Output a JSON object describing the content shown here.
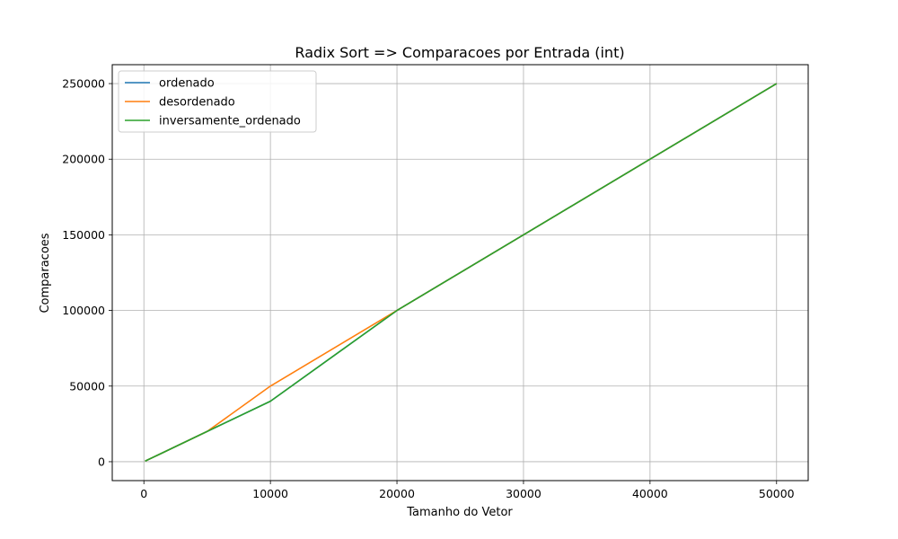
{
  "chart_data": {
    "type": "line",
    "title": "Radix Sort => Comparacoes por Entrada (int)",
    "xlabel": "Tamanho do Vetor",
    "ylabel": "Comparacoes",
    "xlim": [
      -2500,
      52500
    ],
    "ylim": [
      -12500,
      262500
    ],
    "xticks": [
      0,
      10000,
      20000,
      30000,
      40000,
      50000
    ],
    "yticks": [
      0,
      50000,
      100000,
      150000,
      200000,
      250000
    ],
    "grid": true,
    "legend_position": "top-left",
    "series": [
      {
        "name": "ordenado",
        "color": "#1f77b4",
        "x": [
          100,
          1000,
          5000,
          10000,
          20000,
          50000
        ],
        "y": [
          400,
          4000,
          20000,
          40000,
          100000,
          250000
        ]
      },
      {
        "name": "desordenado",
        "color": "#ff7f0e",
        "x": [
          100,
          1000,
          5000,
          10000,
          20000,
          50000
        ],
        "y": [
          400,
          4000,
          20000,
          50000,
          100000,
          250000
        ]
      },
      {
        "name": "inversamente_ordenado",
        "color": "#2ca02c",
        "x": [
          100,
          1000,
          5000,
          10000,
          20000,
          50000
        ],
        "y": [
          400,
          4000,
          20000,
          40000,
          100000,
          250000
        ]
      }
    ]
  }
}
